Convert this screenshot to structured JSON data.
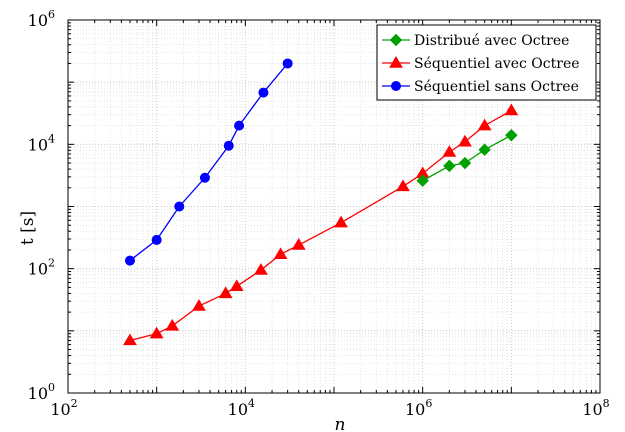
{
  "chart_data": {
    "type": "line",
    "title": "",
    "xlabel": "n",
    "ylabel": "t [s]",
    "xscale": "log",
    "yscale": "log",
    "xlim": [
      100,
      100000000
    ],
    "ylim": [
      1,
      1000000
    ],
    "grid": "on (major and minor, dotted)",
    "legend_placement": "top-right",
    "x_ticks": [
      {
        "base": "10",
        "exp": "2"
      },
      {
        "base": "10",
        "exp": "4"
      },
      {
        "base": "10",
        "exp": "6"
      },
      {
        "base": "10",
        "exp": "8"
      }
    ],
    "y_ticks": [
      {
        "base": "10",
        "exp": "0"
      },
      {
        "base": "10",
        "exp": "2"
      },
      {
        "base": "10",
        "exp": "4"
      },
      {
        "base": "10",
        "exp": "6"
      }
    ],
    "series": [
      {
        "name": "Distribué avec Octree",
        "color": "#00a000",
        "marker": "diamond",
        "x": [
          1000000,
          2000000,
          3000000,
          5000000,
          10000000
        ],
        "y": [
          2600,
          4500,
          5000,
          8200,
          14000
        ]
      },
      {
        "name": "Séquentiel avec Octree",
        "color": "#ff0000",
        "marker": "triangle",
        "x": [
          500,
          1000,
          1500,
          3000,
          6000,
          8000,
          15000,
          25000,
          40000,
          120000,
          600000,
          1000000,
          2000000,
          3000000,
          5000000,
          10000000
        ],
        "y": [
          7,
          9,
          12,
          25,
          40,
          52,
          95,
          170,
          240,
          550,
          2100,
          3400,
          7500,
          11000,
          20000,
          35000
        ]
      },
      {
        "name": "Séquentiel sans Octree",
        "color": "#0000ff",
        "marker": "circle",
        "x": [
          500,
          1000,
          1800,
          3500,
          6500,
          8500,
          16000,
          30000
        ],
        "y": [
          135,
          290,
          1000,
          2900,
          9500,
          20000,
          68000,
          200000
        ]
      }
    ]
  }
}
